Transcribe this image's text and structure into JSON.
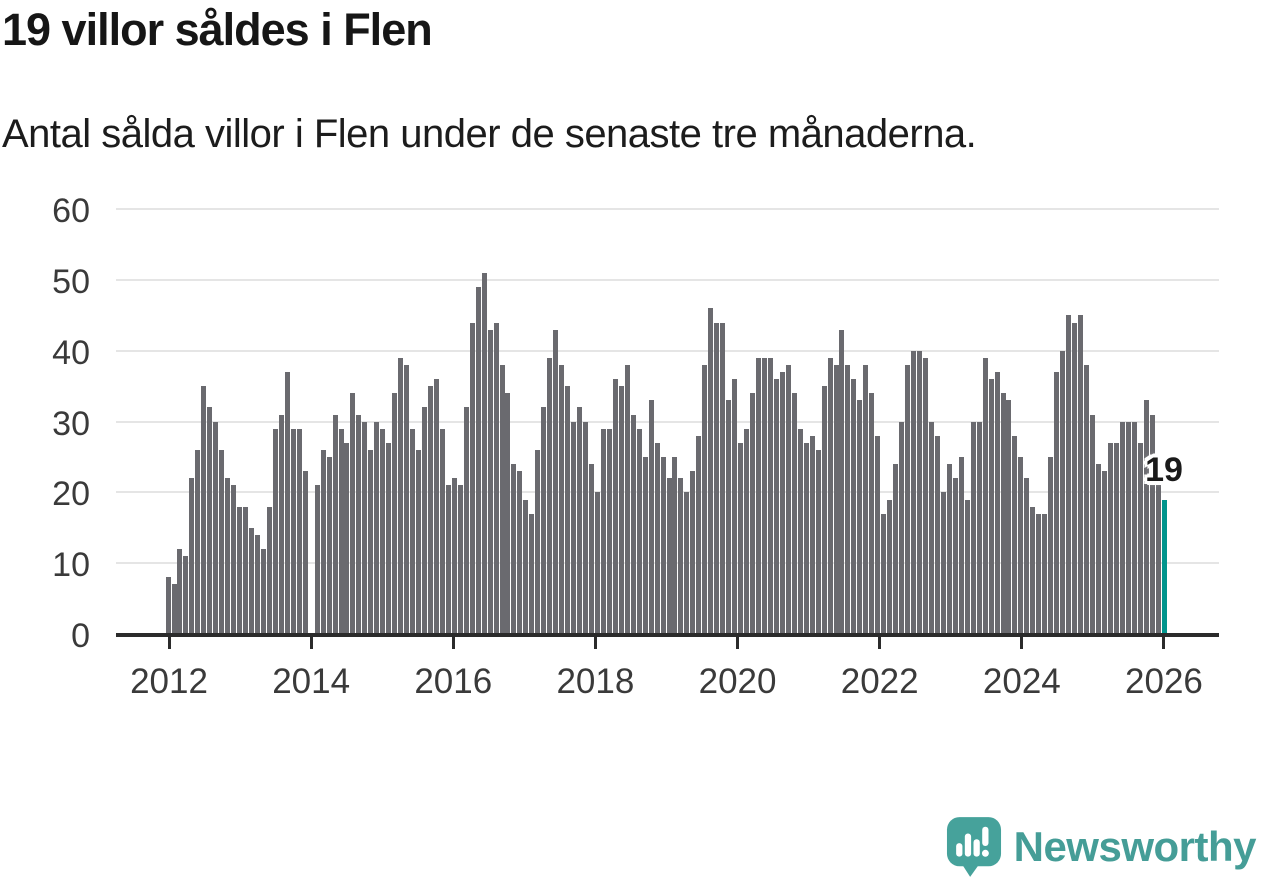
{
  "header": {
    "title": "19 villor såldes i Flen",
    "subtitle": "Antal sålda villor i Flen under de senaste tre månaderna."
  },
  "chart_data": {
    "type": "bar",
    "title": "19 villor såldes i Flen",
    "subtitle": "Antal sålda villor i Flen under de senaste tre månaderna.",
    "start_month": "2012-01",
    "end_month": "2025-12",
    "missing_month": "2014-01",
    "missing_index": 24,
    "highlight_index": 167,
    "highlight_value": 19,
    "highlight_label": "19",
    "bar_color": "#6a6a6f",
    "highlight_color": "#00948c",
    "grid": true,
    "ylim": [
      0,
      60
    ],
    "y_ticks": [
      0,
      10,
      20,
      30,
      40,
      50,
      60
    ],
    "x_tick_labels": [
      "2012",
      "2014",
      "2016",
      "2018",
      "2020",
      "2022",
      "2024",
      "2026"
    ],
    "values": [
      8,
      7,
      12,
      11,
      22,
      26,
      35,
      32,
      30,
      26,
      22,
      21,
      18,
      18,
      15,
      14,
      12,
      18,
      29,
      31,
      37,
      29,
      29,
      23,
      null,
      21,
      26,
      25,
      31,
      29,
      27,
      34,
      31,
      30,
      26,
      30,
      29,
      27,
      34,
      39,
      38,
      29,
      26,
      32,
      35,
      36,
      29,
      21,
      22,
      21,
      32,
      44,
      49,
      51,
      43,
      44,
      38,
      34,
      24,
      23,
      19,
      17,
      26,
      32,
      39,
      43,
      38,
      35,
      30,
      32,
      30,
      24,
      20,
      29,
      29,
      36,
      35,
      38,
      31,
      29,
      25,
      33,
      27,
      25,
      22,
      25,
      22,
      20,
      23,
      28,
      38,
      46,
      44,
      44,
      33,
      36,
      27,
      29,
      34,
      39,
      39,
      39,
      36,
      37,
      38,
      34,
      29,
      27,
      28,
      26,
      35,
      39,
      38,
      43,
      38,
      36,
      33,
      38,
      34,
      28,
      17,
      19,
      24,
      30,
      38,
      40,
      40,
      39,
      30,
      28,
      20,
      24,
      22,
      25,
      19,
      30,
      30,
      39,
      36,
      37,
      34,
      33,
      28,
      25,
      22,
      18,
      17,
      17,
      25,
      37,
      40,
      45,
      44,
      45,
      38,
      31,
      24,
      23,
      27,
      27,
      30,
      30,
      30,
      27,
      33,
      31,
      21,
      19
    ]
  },
  "footer": {
    "brand": "Newsworthy",
    "brand_color": "#459d97",
    "logo_icon": "newsworthy-logo-icon"
  }
}
